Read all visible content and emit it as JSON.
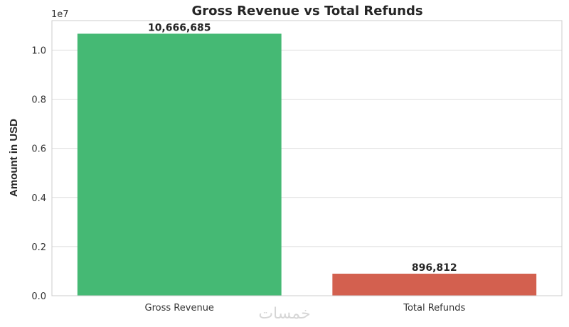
{
  "chart_data": {
    "type": "bar",
    "title": "Gross Revenue vs Total Refunds",
    "xlabel": "",
    "ylabel": "Amount in USD",
    "axis_offset_label": "1e7",
    "categories": [
      "Gross Revenue",
      "Total Refunds"
    ],
    "values": [
      10666685,
      896812
    ],
    "value_labels": [
      "10,666,685",
      "896,812"
    ],
    "colors": [
      "#45b974",
      "#d3604f"
    ],
    "ylim": [
      0,
      11200000
    ],
    "yticks": [
      0,
      2000000,
      4000000,
      6000000,
      8000000,
      10000000
    ],
    "ytick_labels": [
      "0.0",
      "0.2",
      "0.4",
      "0.6",
      "0.8",
      "1.0"
    ],
    "grid": true,
    "legend": "none"
  },
  "watermark": "خمسات"
}
